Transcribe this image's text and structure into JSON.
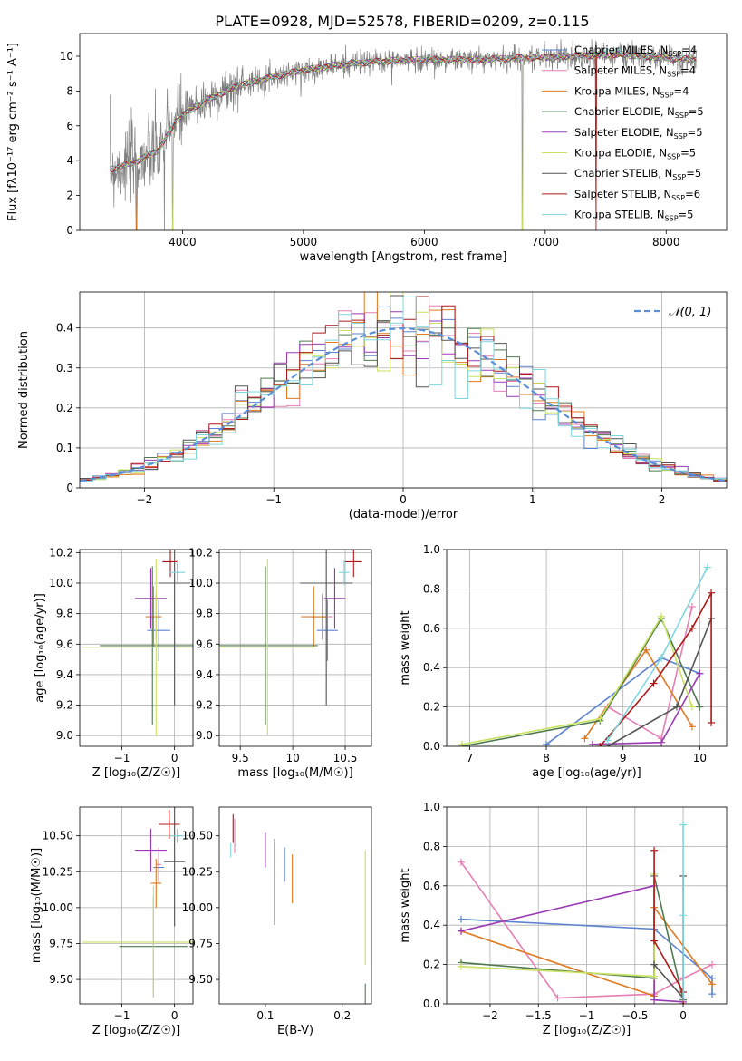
{
  "title": "PLATE=0928, MJD=52578, FIBERID=0209, z=0.115",
  "colors": {
    "chabrier_miles": "#5b82d0",
    "salpeter_miles": "#e67fb4",
    "kroupa_miles": "#e0781e",
    "chabrier_elodie": "#4f7a4f",
    "salpeter_elodie": "#9a3ab5",
    "kroupa_elodie": "#c8e262",
    "chabrier_stelib": "#555555",
    "salpeter_stelib": "#b01818",
    "kroupa_stelib": "#7fd6de",
    "data": "#808080",
    "normal": "#5b8ed6"
  },
  "chart_data": [
    {
      "id": "spectrum",
      "type": "line",
      "xlabel": "wavelength [Angstrom, rest frame]",
      "ylabel": "Flux [fλ10⁻¹⁷ erg cm⁻² s⁻¹ A⁻¹]",
      "xlim": [
        3150,
        8500
      ],
      "ylim": [
        0,
        11.3
      ],
      "xticks": [
        4000,
        5000,
        6000,
        7000,
        8000
      ],
      "yticks": [
        0,
        2,
        4,
        6,
        8,
        10
      ],
      "legend_position": "top-right",
      "legend": [
        "Chabrier MILES, N_SSP=4",
        "Salpeter MILES, N_SSP=4",
        "Kroupa MILES, N_SSP=4",
        "Chabrier ELODIE, N_SSP=5",
        "Salpeter ELODIE, N_SSP=5",
        "Kroupa ELODIE, N_SSP=5",
        "Chabrier STELIB, N_SSP=5",
        "Salpeter STELIB, N_SSP=6",
        "Kroupa STELIB, N_SSP=5"
      ],
      "continuum": {
        "x": [
          3400,
          3600,
          3800,
          3950,
          4100,
          4300,
          4500,
          4800,
          5000,
          5300,
          5600,
          6000,
          6400,
          6800,
          7200,
          7600,
          8000,
          8250
        ],
        "y": [
          3.5,
          3.9,
          4.6,
          6.3,
          7.1,
          7.8,
          8.4,
          8.9,
          9.2,
          9.5,
          9.7,
          9.8,
          9.8,
          9.9,
          10.0,
          10.1,
          9.9,
          9.8
        ]
      },
      "dips": [
        {
          "x": 3620,
          "y": 0
        },
        {
          "x": 3850,
          "y": 0
        },
        {
          "x": 3920,
          "y": 0
        },
        {
          "x": 6810,
          "y": 0
        },
        {
          "x": 7420,
          "y": 0
        }
      ]
    },
    {
      "id": "residuals",
      "type": "area",
      "xlabel": "(data-model)/error",
      "ylabel": "Normed distribution",
      "xlim": [
        -2.5,
        2.5
      ],
      "ylim": [
        0,
        0.49
      ],
      "xticks": [
        -2,
        -1,
        0,
        1,
        2
      ],
      "yticks": [
        0,
        0.1,
        0.2,
        0.3,
        0.4
      ],
      "grid": true,
      "legend_position": "top-right",
      "legend": [
        "𝒩(0, 1)"
      ],
      "bin_width": 0.1,
      "series_count": 9
    },
    {
      "id": "age-vs-z",
      "type": "scatter",
      "xlabel": "Z [log₁₀(Z/Z☉)]",
      "ylabel": "age  [log₁₀(age/yr)]",
      "xlim": [
        -1.8,
        0.35
      ],
      "ylim": [
        8.93,
        10.22
      ],
      "xticks": [
        -1,
        0
      ],
      "yticks": [
        9.0,
        9.2,
        9.4,
        9.6,
        9.8,
        10.0,
        10.2
      ],
      "grid": true,
      "points": [
        {
          "series": "chabrier_miles",
          "x": -0.3,
          "y": 9.69,
          "xerr": 0.22,
          "yerr": 0.2
        },
        {
          "series": "salpeter_miles",
          "x": -0.35,
          "y": 9.78,
          "xerr": 0.1,
          "yerr": 0.15
        },
        {
          "series": "kroupa_miles",
          "x": -0.4,
          "y": 9.78,
          "xerr": 0.15,
          "yerr": 0.2
        },
        {
          "series": "chabrier_elodie",
          "x": -0.42,
          "y": 9.59,
          "xerr": 1.0,
          "yerr": 0.52
        },
        {
          "series": "salpeter_elodie",
          "x": -0.45,
          "y": 9.9,
          "xerr": 0.3,
          "yerr": 0.2
        },
        {
          "series": "kroupa_elodie",
          "x": -0.35,
          "y": 9.58,
          "xerr": 1.42,
          "yerr": 0.58
        },
        {
          "series": "chabrier_stelib",
          "x": 0.0,
          "y": 10.0,
          "xerr": 0.3,
          "yerr": 0.8
        },
        {
          "series": "salpeter_stelib",
          "x": -0.08,
          "y": 10.14,
          "xerr": 0.15,
          "yerr": 0.1
        },
        {
          "series": "kroupa_stelib",
          "x": 0.05,
          "y": 10.07,
          "xerr": 0.15,
          "yerr": 0.08
        }
      ]
    },
    {
      "id": "age-vs-mass",
      "type": "scatter",
      "xlabel": "mass [log₁₀(M/M☉)]",
      "ylabel": "",
      "xlim": [
        9.3,
        10.75
      ],
      "ylim": [
        8.93,
        10.22
      ],
      "xticks": [
        9.5,
        10.0,
        10.5
      ],
      "yticks": [
        9.0,
        9.2,
        9.4,
        9.6,
        9.8,
        10.0,
        10.2
      ],
      "grid": true,
      "points": [
        {
          "series": "chabrier_miles",
          "x": 10.33,
          "y": 9.69,
          "xerr": 0.1,
          "yerr": 0.2
        },
        {
          "series": "salpeter_miles",
          "x": 10.28,
          "y": 9.78,
          "xerr": 0.1,
          "yerr": 0.15
        },
        {
          "series": "kroupa_miles",
          "x": 10.2,
          "y": 9.78,
          "xerr": 0.12,
          "yerr": 0.2
        },
        {
          "series": "chabrier_elodie",
          "x": 9.74,
          "y": 9.59,
          "xerr": 0.5,
          "yerr": 0.52
        },
        {
          "series": "salpeter_elodie",
          "x": 10.4,
          "y": 9.9,
          "xerr": 0.1,
          "yerr": 0.2
        },
        {
          "series": "kroupa_elodie",
          "x": 9.76,
          "y": 9.58,
          "xerr": 0.45,
          "yerr": 0.58
        },
        {
          "series": "chabrier_stelib",
          "x": 10.32,
          "y": 10.0,
          "xerr": 0.25,
          "yerr": 0.8
        },
        {
          "series": "salpeter_stelib",
          "x": 10.58,
          "y": 10.14,
          "xerr": 0.08,
          "yerr": 0.1
        },
        {
          "series": "kroupa_stelib",
          "x": 10.49,
          "y": 10.07,
          "xerr": 0.05,
          "yerr": 0.08
        }
      ]
    },
    {
      "id": "weight-vs-age",
      "type": "line",
      "xlabel": "age  [log₁₀(age/yr)]",
      "ylabel": "mass weight",
      "xlim": [
        6.7,
        10.35
      ],
      "ylim": [
        0,
        1.0
      ],
      "xticks": [
        7,
        8,
        9,
        10
      ],
      "yticks": [
        0.0,
        0.2,
        0.4,
        0.6,
        0.8,
        1.0
      ],
      "grid": true,
      "series": [
        {
          "key": "chabrier_miles",
          "x": [
            8.0,
            9.5,
            10.0
          ],
          "y": [
            0.01,
            0.45,
            0.37
          ]
        },
        {
          "key": "salpeter_miles",
          "x": [
            8.8,
            9.5,
            9.9
          ],
          "y": [
            0.2,
            0.04,
            0.71
          ]
        },
        {
          "key": "kroupa_miles",
          "x": [
            8.5,
            9.3,
            9.9
          ],
          "y": [
            0.04,
            0.49,
            0.1
          ]
        },
        {
          "key": "chabrier_elodie",
          "x": [
            6.9,
            8.7,
            9.5,
            10.0
          ],
          "y": [
            0.0,
            0.13,
            0.65,
            0.2
          ]
        },
        {
          "key": "salpeter_elodie",
          "x": [
            8.6,
            9.5,
            10.0
          ],
          "y": [
            0.01,
            0.02,
            0.37
          ]
        },
        {
          "key": "kroupa_elodie",
          "x": [
            6.9,
            8.7,
            9.5,
            9.9
          ],
          "y": [
            0.01,
            0.14,
            0.66,
            0.2
          ]
        },
        {
          "key": "chabrier_stelib",
          "x": [
            8.8,
            9.7,
            10.15
          ],
          "y": [
            0.0,
            0.2,
            0.65
          ]
        },
        {
          "key": "salpeter_stelib",
          "x": [
            8.7,
            9.4,
            9.9,
            10.15,
            10.15
          ],
          "y": [
            0.0,
            0.32,
            0.6,
            0.78,
            0.12
          ]
        },
        {
          "key": "kroupa_stelib",
          "x": [
            8.8,
            9.5,
            10.1
          ],
          "y": [
            0.03,
            0.45,
            0.91
          ]
        }
      ]
    },
    {
      "id": "mass-vs-z",
      "type": "scatter",
      "xlabel": "Z [log₁₀(Z/Z☉)]",
      "ylabel": "mass [log₁₀(M/M☉)]",
      "xlim": [
        -1.8,
        0.35
      ],
      "ylim": [
        9.33,
        10.7
      ],
      "xticks": [
        -1,
        0
      ],
      "yticks": [
        9.5,
        9.75,
        10.0,
        10.25,
        10.5
      ],
      "grid": true,
      "points": [
        {
          "series": "chabrier_miles",
          "x": -0.3,
          "y": 10.28,
          "xerr": 0.1,
          "yerr": 0.1
        },
        {
          "series": "salpeter_miles",
          "x": -0.3,
          "y": 10.3,
          "xerr": 0.05,
          "yerr": 0.12
        },
        {
          "series": "kroupa_miles",
          "x": -0.35,
          "y": 10.17,
          "xerr": 0.1,
          "yerr": 0.17
        },
        {
          "series": "chabrier_elodie",
          "x": -0.4,
          "y": 9.73,
          "xerr": 0.65,
          "yerr": 0.35
        },
        {
          "series": "salpeter_elodie",
          "x": -0.45,
          "y": 10.4,
          "xerr": 0.3,
          "yerr": 0.15
        },
        {
          "series": "kroupa_elodie",
          "x": -0.4,
          "y": 9.76,
          "xerr": 1.35,
          "yerr": 0.39
        },
        {
          "series": "chabrier_stelib",
          "x": 0.0,
          "y": 10.32,
          "xerr": 0.2,
          "yerr": 0.45
        },
        {
          "series": "salpeter_stelib",
          "x": -0.1,
          "y": 10.58,
          "xerr": 0.2,
          "yerr": 0.1
        },
        {
          "series": "kroupa_stelib",
          "x": 0.05,
          "y": 10.5,
          "xerr": 0.12,
          "yerr": 0.05
        }
      ]
    },
    {
      "id": "mass-vs-ebv",
      "type": "scatter",
      "xlabel": "E(B-V)",
      "ylabel": "",
      "xlim": [
        0.04,
        0.238
      ],
      "ylim": [
        9.33,
        10.7
      ],
      "xticks": [
        0.1,
        0.2
      ],
      "yticks": [
        9.5,
        9.75,
        10.0,
        10.25,
        10.5
      ],
      "grid": false,
      "points": [
        {
          "series": "chabrier_miles",
          "x": 0.125,
          "y": 10.3,
          "xerr": 0,
          "yerr": 0.12
        },
        {
          "series": "salpeter_miles",
          "x": 0.06,
          "y": 10.5,
          "xerr": 0,
          "yerr": 0.12
        },
        {
          "series": "kroupa_miles",
          "x": 0.135,
          "y": 10.2,
          "xerr": 0,
          "yerr": 0.17
        },
        {
          "series": "chabrier_elodie",
          "x": 0.23,
          "y": 9.4,
          "xerr": 0,
          "yerr": 0.07
        },
        {
          "series": "salpeter_elodie",
          "x": 0.1,
          "y": 10.4,
          "xerr": 0,
          "yerr": 0.12
        },
        {
          "series": "kroupa_elodie",
          "x": 0.23,
          "y": 10.0,
          "xerr": 0,
          "yerr": 0.4
        },
        {
          "series": "chabrier_stelib",
          "x": 0.112,
          "y": 10.18,
          "xerr": 0,
          "yerr": 0.3
        },
        {
          "series": "salpeter_stelib",
          "x": 0.058,
          "y": 10.55,
          "xerr": 0,
          "yerr": 0.1
        },
        {
          "series": "kroupa_stelib",
          "x": 0.055,
          "y": 10.4,
          "xerr": 0,
          "yerr": 0.05
        }
      ]
    },
    {
      "id": "weight-vs-z",
      "type": "line",
      "xlabel": "Z [log₁₀(Z/Z☉)]",
      "ylabel": "mass weight",
      "xlim": [
        -2.45,
        0.45
      ],
      "ylim": [
        0,
        1.0
      ],
      "xticks": [
        -2.0,
        -1.5,
        -1.0,
        -0.5,
        0.0
      ],
      "yticks": [
        0.0,
        0.2,
        0.4,
        0.6,
        0.8,
        1.0
      ],
      "grid": true,
      "series": [
        {
          "key": "chabrier_miles",
          "x": [
            -2.3,
            -0.3,
            0.3,
            0.3
          ],
          "y": [
            0.43,
            0.38,
            0.13,
            0.05
          ]
        },
        {
          "key": "salpeter_miles",
          "x": [
            -2.3,
            -1.3,
            -0.3,
            0.0,
            0.3
          ],
          "y": [
            0.72,
            0.03,
            0.05,
            0.13,
            0.2
          ]
        },
        {
          "key": "kroupa_miles",
          "x": [
            -2.3,
            -0.3,
            -0.3,
            0.3
          ],
          "y": [
            0.37,
            0.04,
            0.49,
            0.1
          ]
        },
        {
          "key": "chabrier_elodie",
          "x": [
            -2.3,
            -0.3,
            -0.3,
            0.0
          ],
          "y": [
            0.21,
            0.13,
            0.65,
            0.02
          ]
        },
        {
          "key": "salpeter_elodie",
          "x": [
            -2.3,
            -0.3,
            -0.3,
            0.0
          ],
          "y": [
            0.37,
            0.6,
            0.02,
            0.01
          ]
        },
        {
          "key": "kroupa_elodie",
          "x": [
            -2.3,
            -0.3,
            -0.3,
            -0.3
          ],
          "y": [
            0.19,
            0.14,
            0.66,
            0.2
          ]
        },
        {
          "key": "chabrier_stelib",
          "x": [
            -0.3,
            0.0,
            0.0
          ],
          "y": [
            0.2,
            0.03,
            0.65
          ]
        },
        {
          "key": "salpeter_stelib",
          "x": [
            -0.3,
            -0.3,
            0.0,
            0.0
          ],
          "y": [
            0.78,
            0.32,
            0.06,
            0.0
          ]
        },
        {
          "key": "kroupa_stelib",
          "x": [
            0.0,
            0.0,
            0.0
          ],
          "y": [
            0.45,
            0.91,
            0.03
          ]
        }
      ]
    }
  ]
}
